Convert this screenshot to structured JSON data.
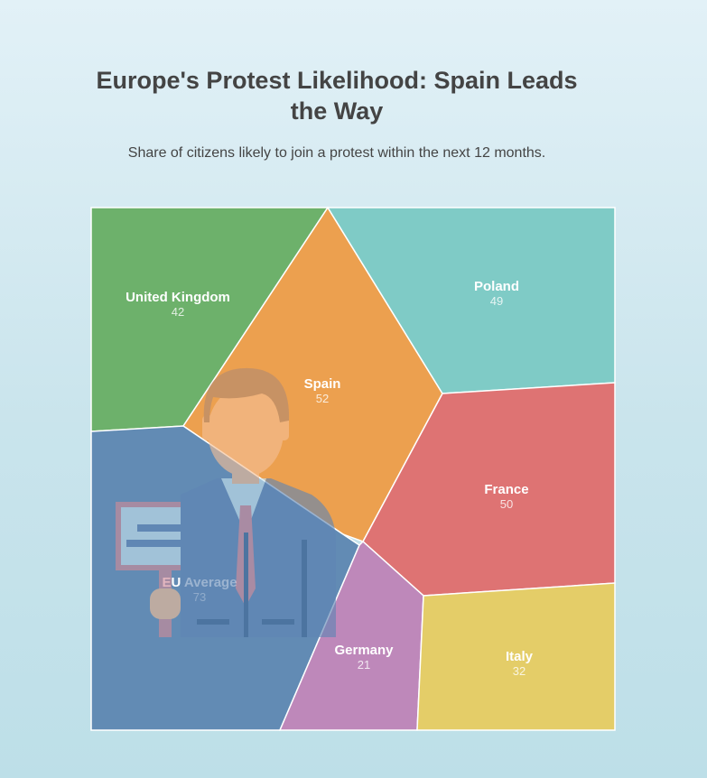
{
  "chart_data": {
    "type": "voronoi-treemap",
    "title": "Europe's Protest Likelihood: Spain Leads the Way",
    "subtitle": "Share of citizens likely to join a protest within the next 12 months.",
    "unit": "",
    "series": [
      {
        "name": "United Kingdom",
        "value": 42,
        "color": "#6db16b"
      },
      {
        "name": "Spain",
        "value": 52,
        "color": "#eca04f"
      },
      {
        "name": "Poland",
        "value": 49,
        "color": "#7fcbc6"
      },
      {
        "name": "France",
        "value": 50,
        "color": "#de7373"
      },
      {
        "name": "EU Average",
        "value": 73,
        "color": "#628bb4"
      },
      {
        "name": "Germany",
        "value": 21,
        "color": "#be88ba"
      },
      {
        "name": "Italy",
        "value": 32,
        "color": "#e4cd68"
      }
    ]
  },
  "illustration": {
    "icon": "protester-with-sign-icon",
    "colors": {
      "skin": "#f5c096",
      "hair": "#b28a72",
      "suit": "#5f86b4",
      "tie": "#d58b9a",
      "sign_board": "#c9e4ef",
      "sign_lines": "#5f86b4",
      "sign_frame": "#d18b98"
    }
  }
}
